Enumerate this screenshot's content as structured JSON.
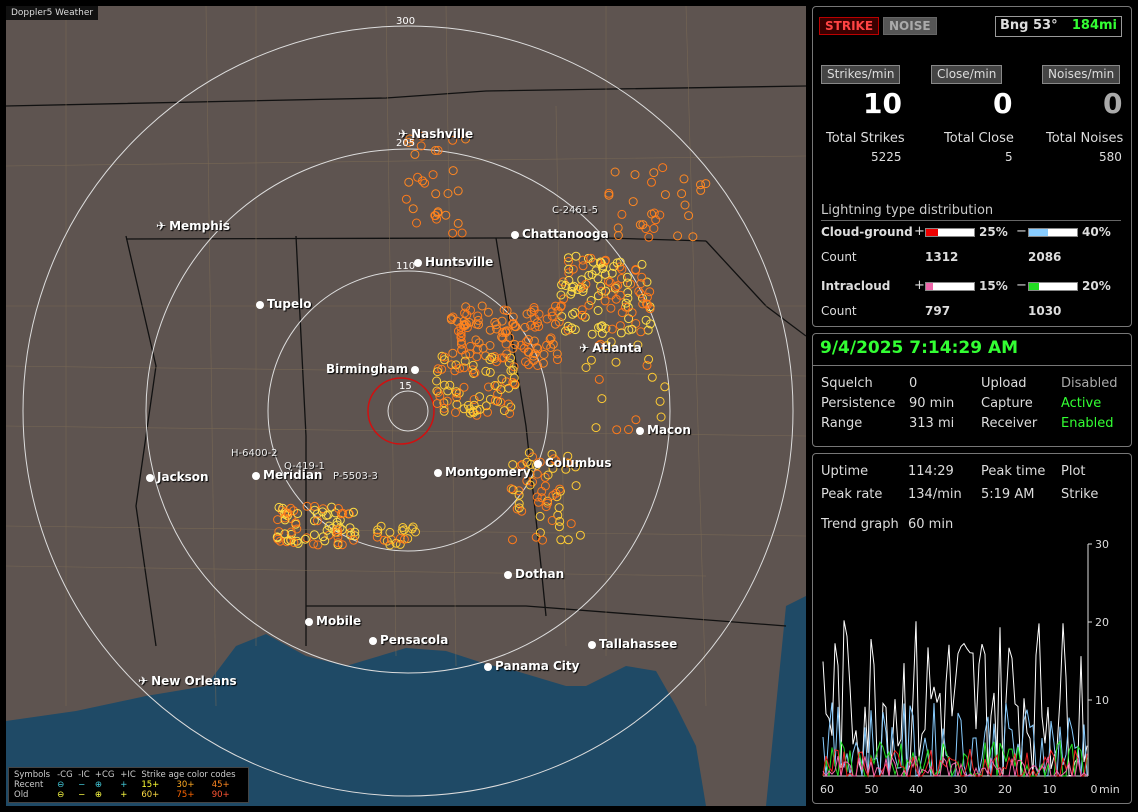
{
  "app_title": "Doppler5 Weather",
  "ring_labels": [
    "300",
    "205",
    "110",
    "15"
  ],
  "cities": [
    {
      "name": "Nashville",
      "type": "airport"
    },
    {
      "name": "Memphis",
      "type": "airport"
    },
    {
      "name": "Chattanooga",
      "type": "city"
    },
    {
      "name": "Huntsville",
      "type": "city"
    },
    {
      "name": "Tupelo",
      "type": "city"
    },
    {
      "name": "Atlanta",
      "type": "airport"
    },
    {
      "name": "Birmingham",
      "type": "city"
    },
    {
      "name": "Macon",
      "type": "city"
    },
    {
      "name": "Jackson",
      "type": "city"
    },
    {
      "name": "Meridian",
      "type": "city"
    },
    {
      "name": "Montgomery",
      "type": "city"
    },
    {
      "name": "Columbus",
      "type": "city"
    },
    {
      "name": "Dothan",
      "type": "city"
    },
    {
      "name": "Mobile",
      "type": "city"
    },
    {
      "name": "Pensacola",
      "type": "city"
    },
    {
      "name": "Tallahassee",
      "type": "city"
    },
    {
      "name": "Panama City",
      "type": "city"
    },
    {
      "name": "New Orleans",
      "type": "airport"
    }
  ],
  "sensors": [
    "C-2461-5",
    "H-6400-2",
    "Q-419-1",
    "P-5503-3"
  ],
  "legend": {
    "header": [
      "Symbols",
      "-CG",
      "-IC",
      "+CG",
      "+IC",
      "Strike age color codes"
    ],
    "recent": {
      "label": "Recent",
      "ages": [
        "15+",
        "30+",
        "45+"
      ]
    },
    "old": {
      "label": "Old",
      "ages": [
        "60+",
        "75+",
        "90+"
      ]
    },
    "colors": {
      "15+": "#ffff33",
      "30+": "#ffaa22",
      "45+": "#ff8822",
      "60+": "#ffdd44",
      "75+": "#ff6600",
      "90+": "#ff5533"
    }
  },
  "top": {
    "strike_label": "STRIKE",
    "noise_label": "NOISE",
    "bearing": "Bng 53°",
    "distance": "184mi",
    "headers": [
      "Strikes/min",
      "Close/min",
      "Noises/min"
    ],
    "values": [
      "10",
      "0",
      "0"
    ],
    "total_labels": [
      "Total Strikes",
      "Total Close",
      "Total Noises"
    ],
    "totals": [
      "5225",
      "5",
      "580"
    ],
    "dist_title": "Lightning type distribution",
    "cg": {
      "label": "Cloud-ground",
      "pos_pct": "25%",
      "neg_pct": "40%",
      "pos": 25,
      "neg": 40,
      "pos_color": "#ee0000",
      "neg_color": "#88ccff"
    },
    "cg_count": {
      "label": "Count",
      "pos": "1312",
      "neg": "2086"
    },
    "ic": {
      "label": "Intracloud",
      "pos_pct": "15%",
      "neg_pct": "20%",
      "pos": 15,
      "neg": 20,
      "pos_color": "#ee66aa",
      "neg_color": "#22dd22"
    },
    "ic_count": {
      "label": "Count",
      "pos": "797",
      "neg": "1030"
    },
    "plus": "+",
    "minus": "−"
  },
  "status": {
    "datetime": "9/4/2025 7:14:29 AM",
    "rows": [
      [
        "Squelch",
        "0",
        "Upload",
        "Disabled"
      ],
      [
        "Persistence",
        "90 min",
        "Capture",
        "Active"
      ],
      [
        "Range",
        "313 mi",
        "Receiver",
        "Enabled"
      ]
    ]
  },
  "trend": {
    "uptime_label": "Uptime",
    "uptime": "114:29",
    "peak_time_label": "Peak time",
    "peak_time": "5:19 AM",
    "plot_label": "Plot",
    "plot": "Strike",
    "peak_rate_label": "Peak rate",
    "peak_rate": "134/min",
    "graph_label": "Trend graph",
    "graph": "60 min",
    "y_ticks": [
      "30",
      "20",
      "10"
    ],
    "x_ticks": [
      "60",
      "50",
      "40",
      "30",
      "20",
      "10",
      "0"
    ],
    "x_unit": "min"
  }
}
